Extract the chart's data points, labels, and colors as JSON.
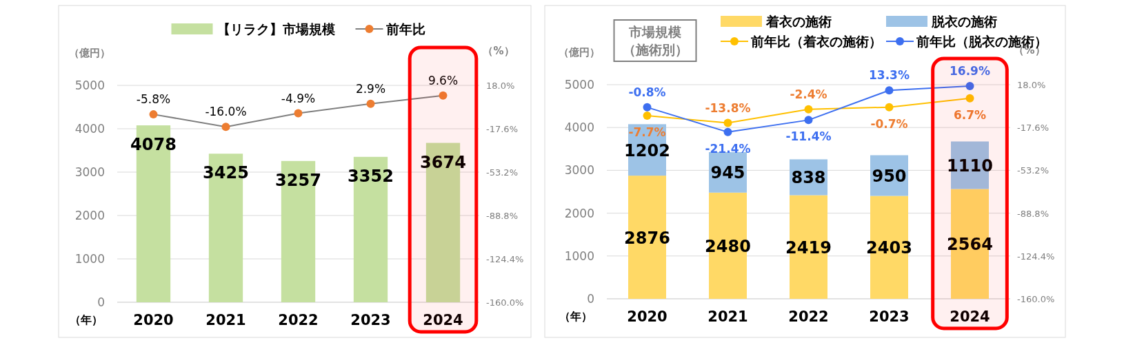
{
  "chart_data": [
    {
      "type": "bar",
      "categories": [
        "2020",
        "2021",
        "2022",
        "2023",
        "2024"
      ],
      "xlabel": "（年）",
      "ylabel": "（億円）",
      "y2label": "（%）",
      "ylim": [
        0,
        5000
      ],
      "yticks": [
        0,
        1000,
        2000,
        3000,
        4000,
        5000
      ],
      "y2lim": [
        -160,
        18
      ],
      "y2ticks": [
        {
          "value": -160,
          "label": "-160.0%"
        },
        {
          "value": -124.4,
          "label": "-124.4%"
        },
        {
          "value": -88.8,
          "label": "-88.8%"
        },
        {
          "value": -53.2,
          "label": "-53.2%"
        },
        {
          "value": -17.6,
          "label": "-17.6%"
        },
        {
          "value": 18,
          "label": "18.0%"
        }
      ],
      "grid": "y",
      "legend": "top",
      "data_labels": true,
      "bands": [
        {
          "axis": "x",
          "from": "2024",
          "to": "2024",
          "color": "#ff0000"
        }
      ],
      "series": [
        {
          "name": "【リラク】市場規模",
          "type": "bar",
          "color": "#c5e0a0",
          "values": [
            4078,
            3425,
            3257,
            3352,
            3674
          ]
        },
        {
          "name": "前年比",
          "type": "line",
          "axis": "y2",
          "marker": "circle",
          "color": "#7f7f7f",
          "colors": [
            "#ed7d31",
            "#ed7d31",
            "#ed7d31",
            "#ed7d31",
            "#ed7d31"
          ],
          "values": [
            -5.8,
            -16.0,
            -4.9,
            2.9,
            9.6
          ],
          "value_labels": [
            "-5.8%",
            "-16.0%",
            "-4.9%",
            "2.9%",
            "9.6%"
          ]
        }
      ]
    },
    {
      "type": "bar",
      "title": "市場規模（施術別）",
      "categories": [
        "2020",
        "2021",
        "2022",
        "2023",
        "2024"
      ],
      "xlabel": "（年）",
      "ylabel": "（億円）",
      "y2label": "（%）",
      "ylim": [
        0,
        5000
      ],
      "yticks": [
        0,
        1000,
        2000,
        3000,
        4000,
        5000
      ],
      "y2lim": [
        -160,
        18
      ],
      "y2ticks": [
        {
          "value": -160,
          "label": "-160.0%"
        },
        {
          "value": -124.4,
          "label": "-124.4%"
        },
        {
          "value": -88.8,
          "label": "-88.8%"
        },
        {
          "value": -53.2,
          "label": "-53.2%"
        },
        {
          "value": -17.6,
          "label": "-17.6%"
        },
        {
          "value": 18,
          "label": "18.0%"
        }
      ],
      "grid": "y",
      "legend": "top right",
      "data_labels": true,
      "stacked": true,
      "bands": [
        {
          "axis": "x",
          "from": "2024",
          "to": "2024",
          "color": "#ff0000"
        }
      ],
      "series": [
        {
          "name": "着衣の施術",
          "type": "bar",
          "color": "#ffd966",
          "values": [
            2876,
            2480,
            2419,
            2403,
            2564
          ]
        },
        {
          "name": "脱衣の施術",
          "type": "bar",
          "color": "#9dc3e6",
          "values": [
            1202,
            945,
            838,
            950,
            1110
          ]
        },
        {
          "name": "前年比（着衣の施術）",
          "type": "line",
          "axis": "y2",
          "marker": "circle",
          "color": "#ffc000",
          "values": [
            -7.7,
            -13.8,
            -2.4,
            -0.7,
            6.7
          ],
          "value_labels": [
            "-7.7%",
            "-13.8%",
            "-2.4%",
            "-0.7%",
            "6.7%"
          ]
        },
        {
          "name": "前年比（脱衣の施術）",
          "type": "line",
          "axis": "y2",
          "marker": "circle",
          "color": "#3d6ff0",
          "values": [
            -0.8,
            -21.4,
            -11.4,
            13.3,
            16.9
          ],
          "value_labels": [
            "-0.8%",
            "-21.4%",
            "-11.4%",
            "13.3%",
            "16.9%"
          ]
        }
      ]
    }
  ]
}
